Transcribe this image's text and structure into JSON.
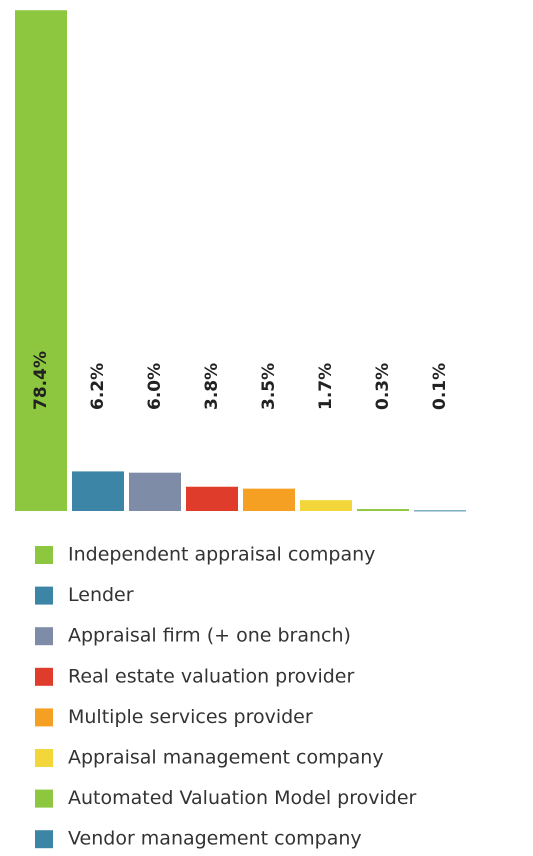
{
  "chart_data": {
    "type": "bar",
    "categories": [
      "Independent appraisal company",
      "Lender",
      "Appraisal firm (+ one branch)",
      "Real estate valuation provider",
      "Multiple services provider",
      "Appraisal management company",
      "Automated Valuation Model provider",
      "Vendor management company"
    ],
    "values": [
      78.4,
      6.2,
      6.0,
      3.8,
      3.5,
      1.7,
      0.3,
      0.1
    ],
    "value_labels": [
      "78.4%",
      "6.2%",
      "6.0%",
      "3.8%",
      "3.5%",
      "1.7%",
      "0.3%",
      "0.1%"
    ],
    "colors": [
      "#8dc63f",
      "#3d85a6",
      "#7f8ca8",
      "#e03c2c",
      "#f5a023",
      "#f2d63a",
      "#8dc63f",
      "#3d85a6"
    ],
    "ylim": [
      0,
      80
    ]
  }
}
